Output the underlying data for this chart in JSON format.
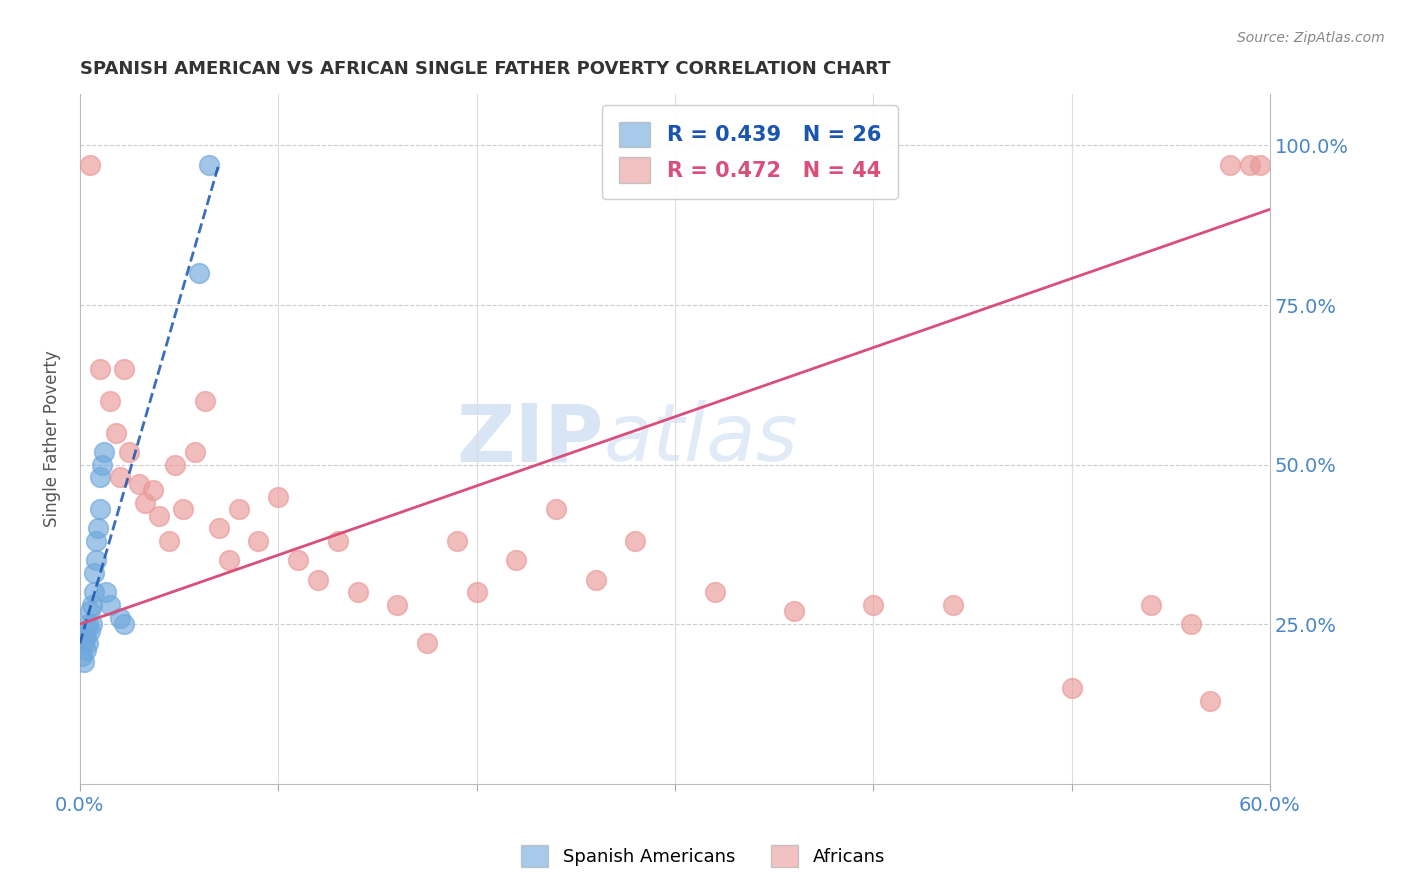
{
  "title": "SPANISH AMERICAN VS AFRICAN SINGLE FATHER POVERTY CORRELATION CHART",
  "source": "Source: ZipAtlas.com",
  "ylabel": "Single Father Poverty",
  "x_min": 0.0,
  "x_max": 0.6,
  "y_min": 0.0,
  "y_max": 1.08,
  "x_ticks": [
    0.0,
    0.1,
    0.2,
    0.3,
    0.4,
    0.5,
    0.6
  ],
  "x_tick_labels": [
    "0.0%",
    "",
    "",
    "",
    "",
    "",
    "60.0%"
  ],
  "y_ticks": [
    0.0,
    0.25,
    0.5,
    0.75,
    1.0
  ],
  "y_tick_labels": [
    "",
    "25.0%",
    "50.0%",
    "75.0%",
    "100.0%"
  ],
  "spanish_R": 0.439,
  "spanish_N": 26,
  "african_R": 0.472,
  "african_N": 44,
  "spanish_color": "#6fa8dc",
  "african_color": "#ea9999",
  "trendline_spanish_color": "#1a56b0",
  "trendline_african_color": "#d94f7a",
  "watermark_zip": "ZIP",
  "watermark_atlas": "atlas",
  "spanish_x": [
    0.001,
    0.002,
    0.002,
    0.003,
    0.003,
    0.004,
    0.004,
    0.005,
    0.005,
    0.006,
    0.006,
    0.007,
    0.007,
    0.008,
    0.008,
    0.009,
    0.01,
    0.01,
    0.011,
    0.012,
    0.013,
    0.015,
    0.02,
    0.022,
    0.06,
    0.065
  ],
  "spanish_y": [
    0.2,
    0.19,
    0.22,
    0.21,
    0.23,
    0.22,
    0.25,
    0.24,
    0.27,
    0.25,
    0.28,
    0.3,
    0.33,
    0.35,
    0.38,
    0.4,
    0.43,
    0.48,
    0.5,
    0.52,
    0.3,
    0.28,
    0.26,
    0.25,
    0.8,
    0.97
  ],
  "african_x": [
    0.005,
    0.01,
    0.015,
    0.018,
    0.02,
    0.022,
    0.025,
    0.03,
    0.033,
    0.037,
    0.04,
    0.045,
    0.048,
    0.052,
    0.058,
    0.063,
    0.07,
    0.075,
    0.08,
    0.09,
    0.1,
    0.11,
    0.12,
    0.13,
    0.14,
    0.16,
    0.175,
    0.19,
    0.2,
    0.22,
    0.24,
    0.26,
    0.28,
    0.32,
    0.36,
    0.4,
    0.44,
    0.5,
    0.54,
    0.56,
    0.57,
    0.58,
    0.59,
    0.595
  ],
  "african_y": [
    0.97,
    0.65,
    0.6,
    0.55,
    0.48,
    0.65,
    0.52,
    0.47,
    0.44,
    0.46,
    0.42,
    0.38,
    0.5,
    0.43,
    0.52,
    0.6,
    0.4,
    0.35,
    0.43,
    0.38,
    0.45,
    0.35,
    0.32,
    0.38,
    0.3,
    0.28,
    0.22,
    0.38,
    0.3,
    0.35,
    0.43,
    0.32,
    0.38,
    0.3,
    0.27,
    0.28,
    0.28,
    0.15,
    0.28,
    0.25,
    0.13,
    0.97,
    0.97,
    0.97
  ],
  "african_trendline_x0": 0.0,
  "african_trendline_y0": 0.25,
  "african_trendline_x1": 0.6,
  "african_trendline_y1": 0.9,
  "spanish_trendline_x0": 0.0,
  "spanish_trendline_y0": 0.22,
  "spanish_trendline_x1": 0.07,
  "spanish_trendline_y1": 0.97
}
